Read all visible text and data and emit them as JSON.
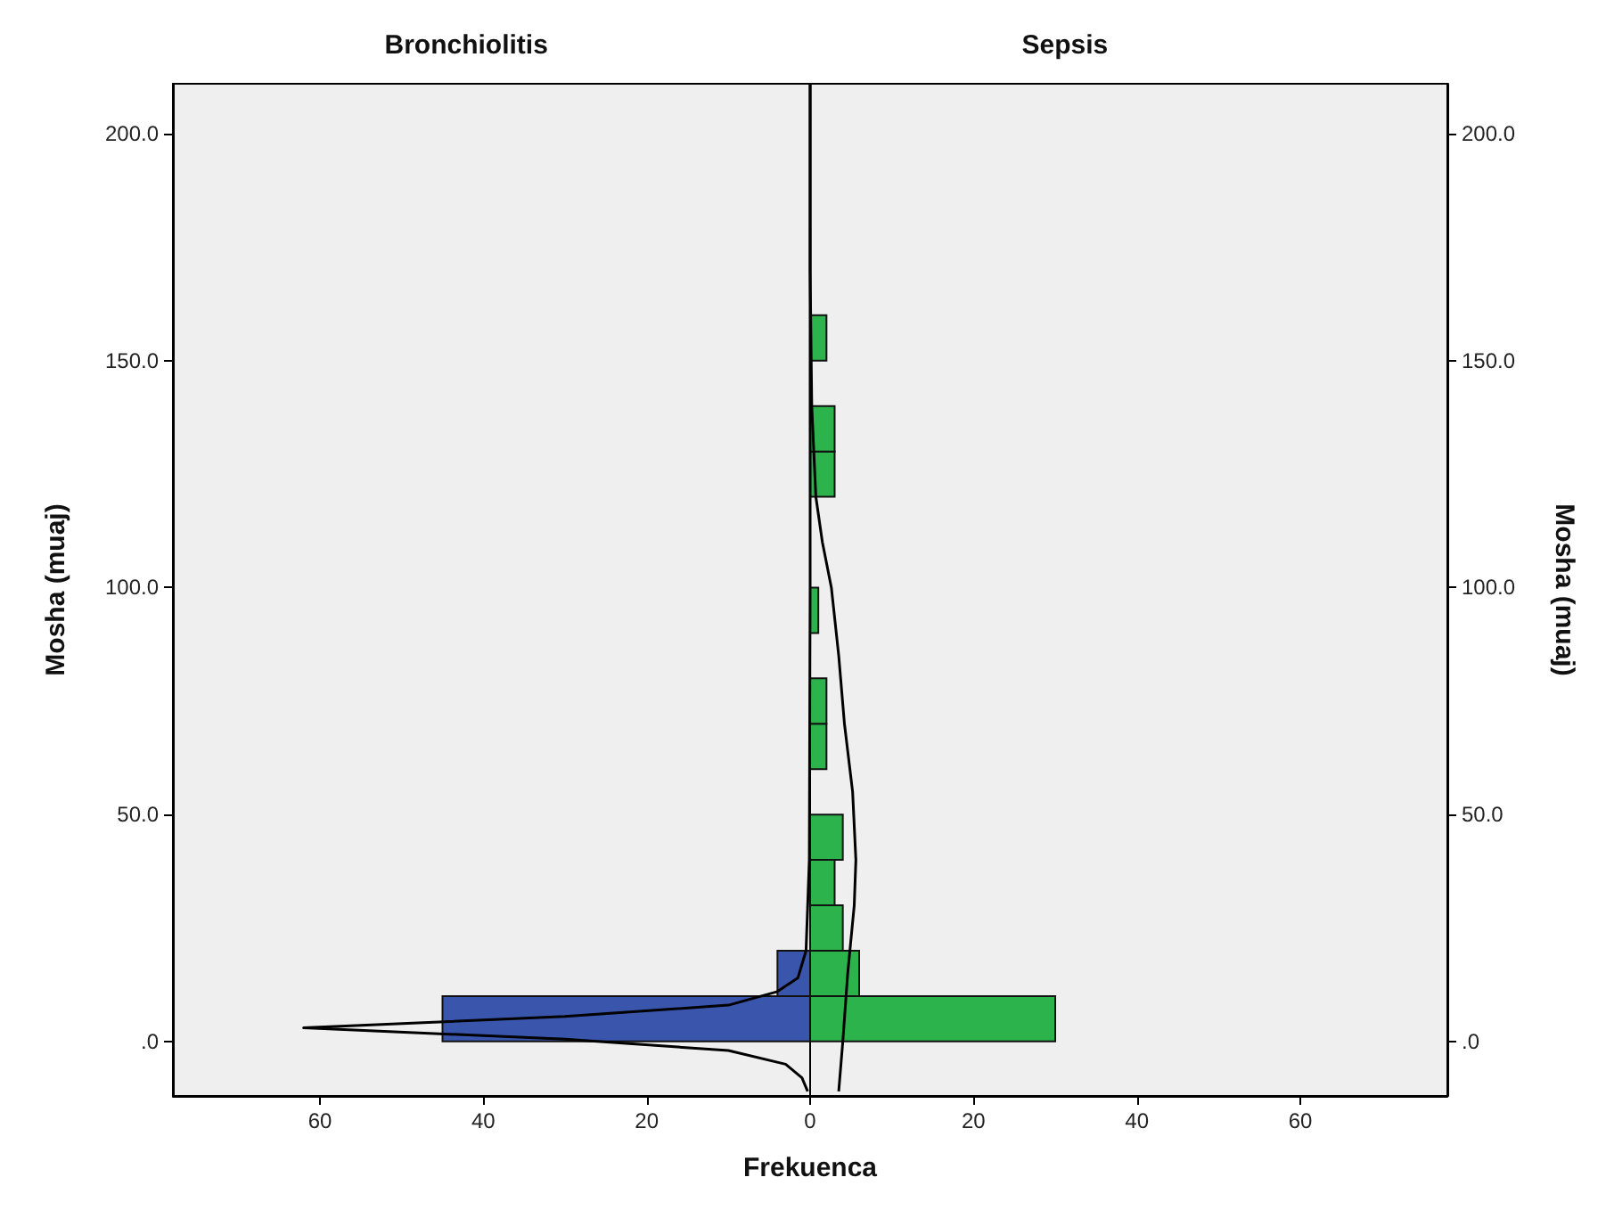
{
  "chart_data": [
    {
      "type": "histogram",
      "title": "Bronchiolitis",
      "ylabel": "Mosha (muaj)",
      "xlabel": "Frekuenca",
      "orientation": "horizontal",
      "xlim": [
        78,
        0
      ],
      "xticks": [
        60,
        40,
        20,
        0
      ],
      "ylim": [
        -12,
        211
      ],
      "yticks": [
        {
          "value": 0,
          "label": ".0"
        },
        {
          "value": 50,
          "label": "50.0"
        },
        {
          "value": 100,
          "label": "100.0"
        },
        {
          "value": 150,
          "label": "150.0"
        },
        {
          "value": 200,
          "label": "200.0"
        }
      ],
      "series": [
        {
          "color": "#3a56ac",
          "bins": [
            0,
            10,
            20
          ],
          "values": [
            45,
            4
          ]
        },
        {
          "type": "line",
          "color": "#000000",
          "x": [
            -11,
            -8,
            -5,
            -2,
            0.5,
            3,
            5.5,
            8,
            11,
            14,
            20,
            40,
            100,
            211
          ],
          "values": [
            0.3,
            1,
            3,
            10,
            30,
            62,
            30,
            10,
            4,
            1.5,
            0.5,
            0.1,
            0,
            0
          ]
        }
      ]
    },
    {
      "type": "histogram",
      "title": "Sepsis",
      "ylabel": "Mosha (muaj)",
      "orientation": "horizontal",
      "xlim": [
        0,
        78
      ],
      "xticks": [
        {
          "value": 0,
          "label": null
        },
        20,
        40,
        60
      ],
      "ylim": [
        -12,
        211
      ],
      "yticks": [
        {
          "value": 0,
          "label": ".0"
        },
        {
          "value": 50,
          "label": "50.0"
        },
        {
          "value": 100,
          "label": "100.0"
        },
        {
          "value": 150,
          "label": "150.0"
        },
        {
          "value": 200,
          "label": "200.0"
        }
      ],
      "series": [
        {
          "color": "#2db34c",
          "bins": [
            0,
            10,
            20,
            30,
            40,
            50,
            60,
            70,
            80,
            90,
            100,
            110,
            120,
            130,
            140,
            150,
            160
          ],
          "values": [
            30,
            6,
            4,
            3,
            4,
            0,
            2,
            2,
            0,
            1,
            0,
            0,
            3,
            3,
            0,
            2
          ]
        },
        {
          "type": "line",
          "color": "#000000",
          "x": [
            -11,
            0,
            15,
            30,
            40,
            55,
            70,
            85,
            100,
            110,
            120,
            140,
            170,
            211
          ],
          "values": [
            3.5,
            4,
            4.6,
            5.4,
            5.6,
            5.2,
            4.2,
            3.5,
            2.6,
            1.5,
            0.7,
            0.2,
            0,
            0
          ]
        }
      ]
    }
  ]
}
